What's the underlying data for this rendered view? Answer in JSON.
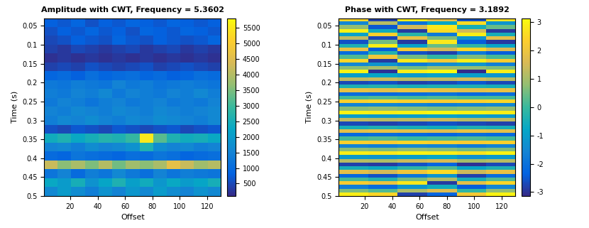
{
  "chart_data": [
    {
      "type": "heatmap",
      "title": "Amplitude with CWT, Frequency = 5.3602",
      "x_label": "Offset",
      "y_label": "Time (s)",
      "xlim": [
        1,
        130
      ],
      "xticks": [
        20,
        40,
        60,
        80,
        100,
        120
      ],
      "ylim": [
        0.5,
        0.03
      ],
      "yticks": [
        0.05,
        0.1,
        0.15,
        0.2,
        0.25,
        0.3,
        0.35,
        0.4,
        0.45,
        0.5
      ],
      "colorbar": {
        "range": [
          100,
          5800
        ],
        "ticks": [
          500,
          1000,
          1500,
          2000,
          2500,
          3000,
          3500,
          4000,
          4500,
          5000,
          5500
        ]
      },
      "cells": [
        [
          800,
          700,
          900,
          600,
          800,
          700,
          900,
          800,
          700,
          900,
          800,
          700,
          800
        ],
        [
          600,
          800,
          700,
          900,
          700,
          800,
          600,
          900,
          800,
          700,
          900,
          800,
          700
        ],
        [
          500,
          600,
          800,
          700,
          600,
          900,
          700,
          600,
          800,
          700,
          600,
          700,
          900
        ],
        [
          400,
          300,
          500,
          400,
          300,
          400,
          500,
          300,
          400,
          500,
          300,
          400,
          300
        ],
        [
          200,
          300,
          200,
          300,
          200,
          300,
          200,
          300,
          200,
          300,
          200,
          300,
          200
        ],
        [
          400,
          500,
          400,
          600,
          500,
          400,
          500,
          600,
          400,
          500,
          600,
          500,
          400
        ],
        [
          900,
          1000,
          800,
          1100,
          900,
          1000,
          1100,
          900,
          1000,
          800,
          900,
          1100,
          1000
        ],
        [
          1300,
          1200,
          1400,
          1300,
          1200,
          1500,
          1300,
          1400,
          1200,
          1300,
          1400,
          1300,
          1200
        ],
        [
          1400,
          1300,
          1500,
          1400,
          1600,
          1300,
          1500,
          1400,
          1300,
          1500,
          1400,
          1600,
          1400
        ],
        [
          1300,
          1500,
          1400,
          1200,
          1400,
          1500,
          1300,
          1400,
          1500,
          1300,
          1400,
          1300,
          1500
        ],
        [
          1500,
          1400,
          1600,
          1500,
          1400,
          1600,
          1500,
          1400,
          1600,
          1500,
          1400,
          1500,
          1600
        ],
        [
          1400,
          1600,
          1500,
          1700,
          1500,
          1400,
          1600,
          1500,
          1700,
          1600,
          1500,
          1400,
          1600
        ],
        [
          600,
          500,
          700,
          600,
          500,
          700,
          600,
          500,
          600,
          700,
          500,
          600,
          700
        ],
        [
          2400,
          2600,
          2300,
          2500,
          2700,
          2600,
          2900,
          5500,
          3200,
          2600,
          2400,
          2500,
          2300
        ],
        [
          1500,
          1600,
          1400,
          1700,
          1500,
          1600,
          1800,
          2600,
          1700,
          1500,
          1600,
          1400,
          1500
        ],
        [
          1000,
          900,
          1200,
          1100,
          1000,
          900,
          1100,
          1000,
          1200,
          1100,
          900,
          1000,
          1100
        ],
        [
          4200,
          3600,
          3900,
          3500,
          4000,
          3400,
          3800,
          3600,
          3900,
          4600,
          4200,
          3800,
          4000
        ],
        [
          1200,
          1500,
          1000,
          1400,
          1200,
          1600,
          1300,
          1100,
          1500,
          1200,
          1400,
          1300,
          1200
        ],
        [
          2300,
          2000,
          2500,
          1800,
          2200,
          2600,
          2100,
          2400,
          1900,
          2300,
          2000,
          2200,
          2500
        ],
        [
          1600,
          2000,
          1700,
          1400,
          1800,
          1500,
          1900,
          1600,
          2000,
          1700,
          1500,
          1800,
          1600
        ]
      ]
    },
    {
      "type": "heatmap",
      "title": "Phase with CWT, Frequency = 3.1892",
      "x_label": "Offset",
      "y_label": "Time (s)",
      "xlim": [
        1,
        130
      ],
      "xticks": [
        20,
        40,
        60,
        80,
        100,
        120
      ],
      "ylim": [
        0.5,
        0.03
      ],
      "yticks": [
        0.05,
        0.1,
        0.15,
        0.2,
        0.25,
        0.3,
        0.35,
        0.4,
        0.45,
        0.5
      ],
      "colorbar": {
        "range": [
          -3.1416,
          3.1416
        ],
        "ticks": [
          -3,
          -2,
          -1,
          0,
          1,
          2,
          3
        ]
      },
      "cells": [
        [
          2.5,
          -2.8,
          2.9,
          1.8,
          -2.6,
          2.7
        ],
        [
          -1.5,
          1.2,
          -2.0,
          -0.8,
          2.6,
          -1.2
        ],
        [
          0.8,
          -2.5,
          1.5,
          2.8,
          -0.5,
          0.4
        ],
        [
          3.0,
          -0.6,
          -2.9,
          2.6,
          1.5,
          -2.9
        ],
        [
          -0.9,
          2.4,
          -0.2,
          -1.8,
          2.9,
          -0.5
        ],
        [
          1.3,
          -2.7,
          1.9,
          0.6,
          -1.2,
          1.8
        ],
        [
          -2.6,
          0.5,
          -2.9,
          2.8,
          -2.4,
          -2.9
        ],
        [
          -0.4,
          2.9,
          -0.9,
          0.4,
          -0.1,
          -0.8
        ],
        [
          1.9,
          -2.4,
          2.2,
          1.5,
          2.5,
          1.6
        ],
        [
          -2.1,
          -0.3,
          -2.6,
          -2.8,
          -1.8,
          -2.4
        ],
        [
          0.2,
          2.1,
          0.5,
          -0.1,
          0.6,
          0.1
        ],
        [
          2.5,
          -2.9,
          2.8,
          2.2,
          2.9,
          2.3
        ],
        [
          -1.5,
          -1.2,
          -1.8,
          -1.4,
          -1.2,
          -1.7
        ],
        [
          0.7,
          1.0,
          0.5,
          0.9,
          0.8,
          0.6
        ],
        [
          3.0,
          -3.0,
          2.9,
          3.1,
          -3.1,
          2.9
        ],
        [
          -1.0,
          -0.8,
          -1.1,
          -0.9,
          -1.0,
          -1.2
        ],
        [
          1.3,
          1.4,
          1.2,
          1.3,
          1.5,
          1.2
        ],
        [
          -2.7,
          -2.6,
          -2.8,
          -2.7,
          -2.5,
          -2.7
        ],
        [
          -0.4,
          -0.3,
          -0.5,
          -0.4,
          -0.4,
          -0.5
        ],
        [
          1.9,
          1.8,
          2.0,
          1.9,
          1.8,
          1.9
        ],
        [
          -2.1,
          -2.2,
          -2.1,
          -2.0,
          -2.2,
          -2.1
        ],
        [
          0.1,
          0.2,
          0.1,
          0.2,
          0.1,
          0.1
        ],
        [
          2.4,
          2.5,
          2.4,
          2.3,
          2.4,
          2.5
        ],
        [
          -1.6,
          -1.5,
          -1.6,
          -1.7,
          -1.6,
          -1.5
        ],
        [
          0.7,
          0.8,
          0.7,
          0.6,
          0.7,
          0.8
        ],
        [
          3.0,
          2.9,
          3.0,
          3.1,
          3.0,
          2.9
        ],
        [
          -1.0,
          -1.1,
          -1.0,
          -0.9,
          -1.0,
          -1.1
        ],
        [
          1.3,
          1.2,
          1.3,
          1.4,
          1.2,
          1.3
        ],
        [
          -2.7,
          -2.8,
          -2.7,
          -2.6,
          -2.7,
          -2.8
        ],
        [
          -0.5,
          -0.4,
          -0.5,
          -0.6,
          -0.4,
          -0.5
        ],
        [
          1.8,
          1.9,
          1.8,
          1.7,
          1.9,
          1.8
        ],
        [
          -2.2,
          -2.1,
          -2.2,
          -2.3,
          -2.1,
          -2.2
        ],
        [
          0.1,
          0.2,
          0.0,
          0.1,
          0.2,
          0.1
        ],
        [
          2.4,
          2.3,
          2.5,
          2.4,
          2.3,
          2.4
        ],
        [
          -1.6,
          -1.7,
          -1.5,
          -1.6,
          -1.8,
          -1.6
        ],
        [
          0.7,
          0.6,
          0.8,
          0.7,
          0.5,
          0.6
        ],
        [
          2.9,
          2.8,
          3.0,
          2.9,
          2.7,
          3.0
        ],
        [
          -1.1,
          -1.2,
          -1.0,
          -0.8,
          -1.3,
          -1.1
        ],
        [
          1.2,
          1.1,
          1.4,
          1.6,
          1.0,
          1.2
        ],
        [
          -2.8,
          -2.9,
          -2.6,
          -2.3,
          -3.0,
          -2.7
        ],
        [
          -0.5,
          -0.7,
          -0.2,
          0.2,
          -0.8,
          -0.4
        ],
        [
          1.8,
          1.5,
          2.1,
          2.6,
          1.4,
          1.9
        ],
        [
          -2.2,
          -2.6,
          -1.9,
          -1.2,
          -2.8,
          -2.1
        ],
        [
          0.1,
          -0.3,
          0.5,
          1.1,
          -0.5,
          0.2
        ],
        [
          2.3,
          2.0,
          2.8,
          -2.9,
          1.8,
          2.5
        ],
        [
          -1.7,
          -2.1,
          -1.2,
          -0.6,
          -2.4,
          -1.5
        ],
        [
          0.6,
          0.2,
          1.1,
          1.7,
          -0.1,
          0.8
        ],
        [
          2.9,
          2.5,
          -2.8,
          -2.3,
          2.2,
          3.0
        ]
      ]
    }
  ]
}
